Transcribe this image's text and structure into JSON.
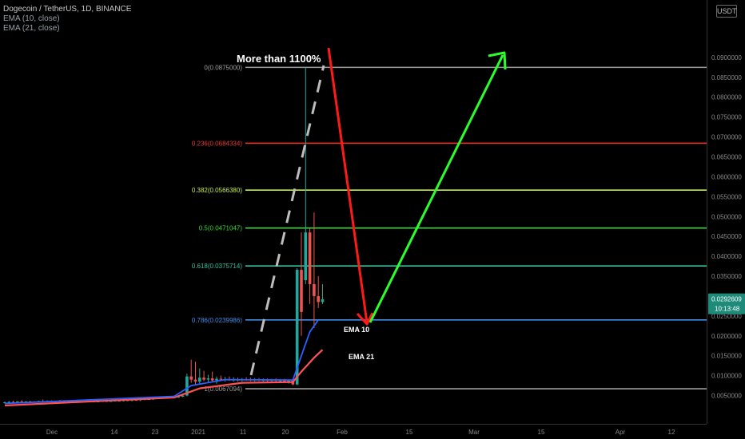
{
  "legend": {
    "symbol": "Dogecoin / TetherUS, 1D, BINANCE",
    "ema10": "EMA (10, close)",
    "ema21": "EMA (21, close)"
  },
  "unit_button": "USDT",
  "colors": {
    "background": "#000000",
    "axis_text": "#8a8a8a",
    "up": "#26a69a",
    "down": "#ef5350",
    "ema10": "#2962ff",
    "ema21": "#ff5252",
    "red_arrow": "#ff1a1a",
    "green_arrow": "#2bff2b",
    "price_badge": "#1e8a7a"
  },
  "price_tag": {
    "value": "0.0292609",
    "countdown": "10:13:48"
  },
  "chart_data": {
    "type": "candlestick",
    "ylim": [
      0.0025,
      0.096
    ],
    "y_ticks": [
      "0.0050000",
      "0.0100000",
      "0.0150000",
      "0.0200000",
      "0.0250000",
      "0.0300000",
      "0.0350000",
      "0.0400000",
      "0.0450000",
      "0.0500000",
      "0.0550000",
      "0.0600000",
      "0.0650000",
      "0.0700000",
      "0.0750000",
      "0.0800000",
      "0.0850000",
      "0.0900000"
    ],
    "x_ticks": [
      "Dec",
      "14",
      "23",
      "2021",
      "11",
      "20",
      "Feb",
      "15",
      "Mar",
      "15",
      "Apr",
      "12"
    ],
    "fib_levels": [
      {
        "label": "0(0.0875000)",
        "value": 0.0875,
        "color": "#9e9e9e"
      },
      {
        "label": "0.236(0.0684334)",
        "value": 0.0684334,
        "color": "#e53935"
      },
      {
        "label": "0.382(0.0566380)",
        "value": 0.056638,
        "color": "#c6ef3b"
      },
      {
        "label": "0.5(0.0471047)",
        "value": 0.0471047,
        "color": "#35d635"
      },
      {
        "label": "0.618(0.0375714)",
        "value": 0.0375714,
        "color": "#33c2a0"
      },
      {
        "label": "0.786(0.0239986)",
        "value": 0.0239986,
        "color": "#3f8ee8"
      },
      {
        "label": "1(0.0067094)",
        "value": 0.0067094,
        "color": "#9e9e9e"
      }
    ],
    "annotations": {
      "gain": "More than 1100%",
      "ema10": "EMA 10",
      "ema21": "EMA 21"
    },
    "candles": [
      [
        0.0032,
        0.0035,
        0.003,
        0.0033
      ],
      [
        0.0033,
        0.0036,
        0.0031,
        0.0034
      ],
      [
        0.0034,
        0.0037,
        0.0032,
        0.0033
      ],
      [
        0.0033,
        0.0036,
        0.0031,
        0.0035
      ],
      [
        0.0035,
        0.0038,
        0.0033,
        0.0034
      ],
      [
        0.0034,
        0.0036,
        0.0032,
        0.0035
      ],
      [
        0.0035,
        0.0037,
        0.0033,
        0.0033
      ],
      [
        0.0033,
        0.0036,
        0.0032,
        0.0035
      ],
      [
        0.0035,
        0.0037,
        0.0033,
        0.0036
      ],
      [
        0.0036,
        0.004,
        0.0034,
        0.0035
      ],
      [
        0.0035,
        0.0038,
        0.0033,
        0.0036
      ],
      [
        0.0036,
        0.0038,
        0.0034,
        0.0034
      ],
      [
        0.0034,
        0.0037,
        0.0032,
        0.0036
      ],
      [
        0.0036,
        0.0039,
        0.0035,
        0.0035
      ],
      [
        0.0035,
        0.0037,
        0.0033,
        0.0034
      ],
      [
        0.0034,
        0.0036,
        0.0033,
        0.0035
      ],
      [
        0.0035,
        0.0037,
        0.0034,
        0.0036
      ],
      [
        0.0036,
        0.0038,
        0.0034,
        0.0034
      ],
      [
        0.0034,
        0.0036,
        0.0033,
        0.0035
      ],
      [
        0.0035,
        0.0036,
        0.0033,
        0.0034
      ],
      [
        0.0034,
        0.0036,
        0.0033,
        0.0035
      ],
      [
        0.0035,
        0.0037,
        0.0034,
        0.0034
      ],
      [
        0.0034,
        0.0036,
        0.0033,
        0.0035
      ],
      [
        0.0035,
        0.0037,
        0.0034,
        0.0036
      ],
      [
        0.0036,
        0.0038,
        0.0034,
        0.0035
      ],
      [
        0.0035,
        0.0037,
        0.0034,
        0.0036
      ],
      [
        0.0036,
        0.0038,
        0.0035,
        0.0037
      ],
      [
        0.0037,
        0.004,
        0.0035,
        0.0036
      ],
      [
        0.0036,
        0.0038,
        0.0035,
        0.0038
      ],
      [
        0.0038,
        0.0041,
        0.0036,
        0.0037
      ],
      [
        0.0037,
        0.0039,
        0.0035,
        0.0039
      ],
      [
        0.0039,
        0.0042,
        0.0037,
        0.0038
      ],
      [
        0.0038,
        0.004,
        0.0036,
        0.004
      ],
      [
        0.004,
        0.0042,
        0.0038,
        0.0041
      ],
      [
        0.0041,
        0.0044,
        0.0039,
        0.004
      ],
      [
        0.004,
        0.0043,
        0.0039,
        0.0043
      ],
      [
        0.0043,
        0.0046,
        0.0042,
        0.0044
      ],
      [
        0.0044,
        0.0046,
        0.0042,
        0.0045
      ],
      [
        0.0045,
        0.0048,
        0.0043,
        0.0046
      ],
      [
        0.0046,
        0.0049,
        0.0044,
        0.0047
      ],
      [
        0.0047,
        0.005,
        0.0045,
        0.0046
      ],
      [
        0.0046,
        0.0048,
        0.0044,
        0.0047
      ],
      [
        0.0047,
        0.0052,
        0.0046,
        0.005
      ],
      [
        0.005,
        0.0105,
        0.0048,
        0.0098
      ],
      [
        0.0098,
        0.014,
        0.0082,
        0.009
      ],
      [
        0.009,
        0.0135,
        0.0078,
        0.0085
      ],
      [
        0.0085,
        0.0118,
        0.008,
        0.0095
      ],
      [
        0.0095,
        0.0112,
        0.0086,
        0.009
      ],
      [
        0.009,
        0.0102,
        0.0084,
        0.0093
      ],
      [
        0.0093,
        0.011,
        0.0085,
        0.0088
      ],
      [
        0.0088,
        0.0098,
        0.008,
        0.0092
      ],
      [
        0.0092,
        0.01,
        0.0086,
        0.009
      ],
      [
        0.009,
        0.0097,
        0.0085,
        0.0091
      ],
      [
        0.0091,
        0.0098,
        0.0087,
        0.0089
      ],
      [
        0.0089,
        0.0096,
        0.0085,
        0.009
      ],
      [
        0.009,
        0.0095,
        0.0086,
        0.0089
      ],
      [
        0.0089,
        0.0094,
        0.0085,
        0.0091
      ],
      [
        0.0091,
        0.0096,
        0.0087,
        0.009
      ],
      [
        0.009,
        0.0095,
        0.0086,
        0.0089
      ],
      [
        0.0089,
        0.0094,
        0.0085,
        0.009
      ],
      [
        0.009,
        0.0094,
        0.0086,
        0.0088
      ],
      [
        0.0088,
        0.0093,
        0.0085,
        0.0089
      ],
      [
        0.0089,
        0.0093,
        0.0085,
        0.0088
      ],
      [
        0.0088,
        0.0092,
        0.0084,
        0.0089
      ],
      [
        0.0089,
        0.0093,
        0.0084,
        0.0087
      ],
      [
        0.0087,
        0.0091,
        0.0083,
        0.0088
      ],
      [
        0.0088,
        0.0092,
        0.0084,
        0.0086
      ],
      [
        0.0086,
        0.009,
        0.008,
        0.0087
      ],
      [
        0.0087,
        0.009,
        0.0076,
        0.0078
      ],
      [
        0.0078,
        0.037,
        0.0076,
        0.0366
      ],
      [
        0.0366,
        0.046,
        0.02,
        0.026
      ],
      [
        0.034,
        0.0875,
        0.033,
        0.046
      ],
      [
        0.046,
        0.047,
        0.028,
        0.033
      ],
      [
        0.033,
        0.051,
        0.022,
        0.03
      ],
      [
        0.03,
        0.035,
        0.027,
        0.0285
      ],
      [
        0.0285,
        0.033,
        0.028,
        0.0292
      ]
    ],
    "ema10": [
      [
        0,
        0.003
      ],
      [
        40,
        0.0048
      ],
      [
        44,
        0.0075
      ],
      [
        52,
        0.009
      ],
      [
        68,
        0.0089
      ],
      [
        70,
        0.015
      ],
      [
        72,
        0.021
      ],
      [
        74,
        0.024
      ]
    ],
    "ema21": [
      [
        0,
        0.0025
      ],
      [
        40,
        0.0045
      ],
      [
        46,
        0.0068
      ],
      [
        56,
        0.0082
      ],
      [
        68,
        0.0084
      ],
      [
        70,
        0.011
      ],
      [
        73,
        0.0145
      ],
      [
        75,
        0.0165
      ]
    ]
  }
}
